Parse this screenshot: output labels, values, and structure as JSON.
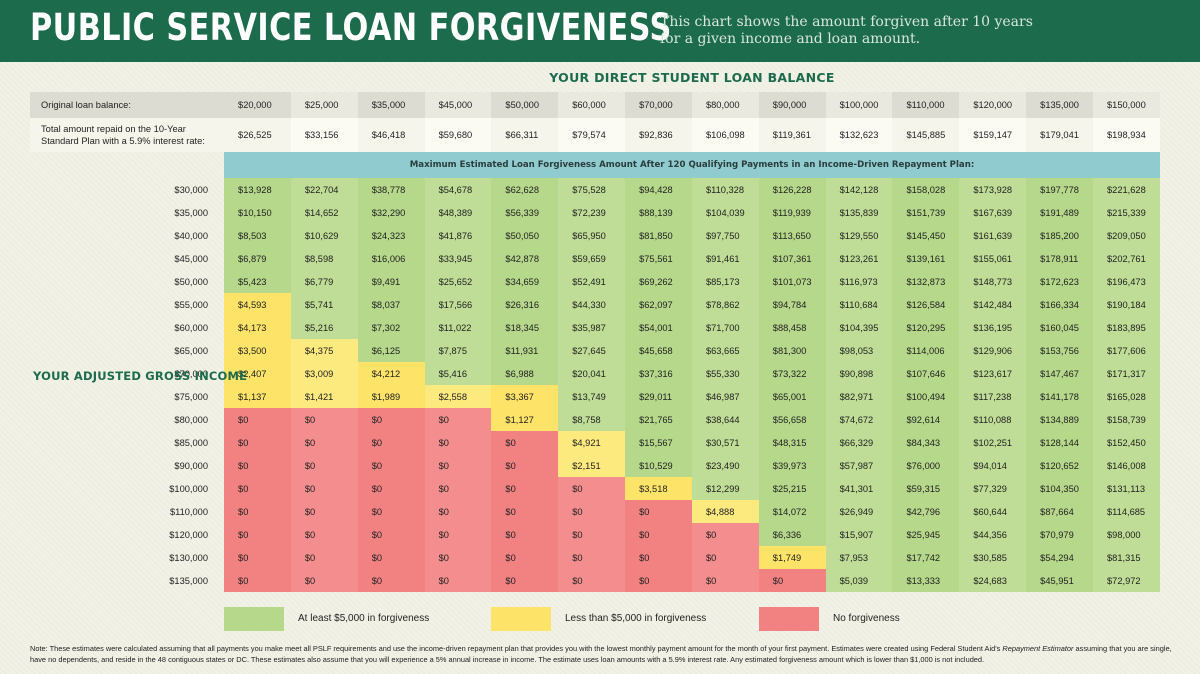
{
  "header": {
    "title": "PUBLIC SERVICE LOAN FORGIVENESS",
    "subtitle": "This chart shows the amount forgiven after 10 years for a given income and loan amount.",
    "color": "#1c6b4c"
  },
  "chart_data": {
    "type": "table",
    "title": "PUBLIC SERVICE LOAN FORGIVENESS",
    "column_heading": "YOUR DIRECT STUDENT LOAN BALANCE",
    "row_heading": "YOUR ADJUSTED GROSS INCOME",
    "balance_label": "Original loan balance:",
    "repaid_label": "Total amount repaid on the 10-Year Standard Plan with a 5.9% interest rate:",
    "banner": "Maximum Estimated Loan Forgiveness Amount After 120 Qualifying Payments in an Income-Driven Repayment Plan:",
    "balances": [
      "$20,000",
      "$25,000",
      "$35,000",
      "$45,000",
      "$50,000",
      "$60,000",
      "$70,000",
      "$80,000",
      "$90,000",
      "$100,000",
      "$110,000",
      "$120,000",
      "$135,000",
      "$150,000"
    ],
    "repaid": [
      "$26,525",
      "$33,156",
      "$46,418",
      "$59,680",
      "$66,311",
      "$79,574",
      "$92,836",
      "$106,098",
      "$119,361",
      "$132,623",
      "$145,885",
      "$159,147",
      "$179,041",
      "$198,934"
    ],
    "rows": [
      {
        "income": "$30,000",
        "values": [
          "$13,928",
          "$22,704",
          "$38,778",
          "$54,678",
          "$62,628",
          "$75,528",
          "$94,428",
          "$110,328",
          "$126,228",
          "$142,128",
          "$158,028",
          "$173,928",
          "$197,778",
          "$221,628"
        ]
      },
      {
        "income": "$35,000",
        "values": [
          "$10,150",
          "$14,652",
          "$32,290",
          "$48,389",
          "$56,339",
          "$72,239",
          "$88,139",
          "$104,039",
          "$119,939",
          "$135,839",
          "$151,739",
          "$167,639",
          "$191,489",
          "$215,339"
        ]
      },
      {
        "income": "$40,000",
        "values": [
          "$8,503",
          "$10,629",
          "$24,323",
          "$41,876",
          "$50,050",
          "$65,950",
          "$81,850",
          "$97,750",
          "$113,650",
          "$129,550",
          "$145,450",
          "$161,639",
          "$185,200",
          "$209,050"
        ]
      },
      {
        "income": "$45,000",
        "values": [
          "$6,879",
          "$8,598",
          "$16,006",
          "$33,945",
          "$42,878",
          "$59,659",
          "$75,561",
          "$91,461",
          "$107,361",
          "$123,261",
          "$139,161",
          "$155,061",
          "$178,911",
          "$202,761"
        ]
      },
      {
        "income": "$50,000",
        "values": [
          "$5,423",
          "$6,779",
          "$9,491",
          "$25,652",
          "$34,659",
          "$52,491",
          "$69,262",
          "$85,173",
          "$101,073",
          "$116,973",
          "$132,873",
          "$148,773",
          "$172,623",
          "$196,473"
        ]
      },
      {
        "income": "$55,000",
        "values": [
          "$4,593",
          "$5,741",
          "$8,037",
          "$17,566",
          "$26,316",
          "$44,330",
          "$62,097",
          "$78,862",
          "$94,784",
          "$110,684",
          "$126,584",
          "$142,484",
          "$166,334",
          "$190,184"
        ]
      },
      {
        "income": "$60,000",
        "values": [
          "$4,173",
          "$5,216",
          "$7,302",
          "$11,022",
          "$18,345",
          "$35,987",
          "$54,001",
          "$71,700",
          "$88,458",
          "$104,395",
          "$120,295",
          "$136,195",
          "$160,045",
          "$183,895"
        ]
      },
      {
        "income": "$65,000",
        "values": [
          "$3,500",
          "$4,375",
          "$6,125",
          "$7,875",
          "$11,931",
          "$27,645",
          "$45,658",
          "$63,665",
          "$81,300",
          "$98,053",
          "$114,006",
          "$129,906",
          "$153,756",
          "$177,606"
        ]
      },
      {
        "income": "$70,000",
        "values": [
          "$2,407",
          "$3,009",
          "$4,212",
          "$5,416",
          "$6,988",
          "$20,041",
          "$37,316",
          "$55,330",
          "$73,322",
          "$90,898",
          "$107,646",
          "$123,617",
          "$147,467",
          "$171,317"
        ]
      },
      {
        "income": "$75,000",
        "values": [
          "$1,137",
          "$1,421",
          "$1,989",
          "$2,558",
          "$3,367",
          "$13,749",
          "$29,011",
          "$46,987",
          "$65,001",
          "$82,971",
          "$100,494",
          "$117,238",
          "$141,178",
          "$165,028"
        ]
      },
      {
        "income": "$80,000",
        "values": [
          "$0",
          "$0",
          "$0",
          "$0",
          "$1,127",
          "$8,758",
          "$21,765",
          "$38,644",
          "$56,658",
          "$74,672",
          "$92,614",
          "$110,088",
          "$134,889",
          "$158,739"
        ]
      },
      {
        "income": "$85,000",
        "values": [
          "$0",
          "$0",
          "$0",
          "$0",
          "$0",
          "$4,921",
          "$15,567",
          "$30,571",
          "$48,315",
          "$66,329",
          "$84,343",
          "$102,251",
          "$128,144",
          "$152,450"
        ]
      },
      {
        "income": "$90,000",
        "values": [
          "$0",
          "$0",
          "$0",
          "$0",
          "$0",
          "$2,151",
          "$10,529",
          "$23,490",
          "$39,973",
          "$57,987",
          "$76,000",
          "$94,014",
          "$120,652",
          "$146,008"
        ]
      },
      {
        "income": "$100,000",
        "values": [
          "$0",
          "$0",
          "$0",
          "$0",
          "$0",
          "$0",
          "$3,518",
          "$12,299",
          "$25,215",
          "$41,301",
          "$59,315",
          "$77,329",
          "$104,350",
          "$131,113"
        ]
      },
      {
        "income": "$110,000",
        "values": [
          "$0",
          "$0",
          "$0",
          "$0",
          "$0",
          "$0",
          "$0",
          "$4,888",
          "$14,072",
          "$26,949",
          "$42,796",
          "$60,644",
          "$87,664",
          "$114,685"
        ]
      },
      {
        "income": "$120,000",
        "values": [
          "$0",
          "$0",
          "$0",
          "$0",
          "$0",
          "$0",
          "$0",
          "$0",
          "$6,336",
          "$15,907",
          "$25,945",
          "$44,356",
          "$70,979",
          "$98,000"
        ]
      },
      {
        "income": "$130,000",
        "values": [
          "$0",
          "$0",
          "$0",
          "$0",
          "$0",
          "$0",
          "$0",
          "$0",
          "$1,749",
          "$7,953",
          "$17,742",
          "$30,585",
          "$54,294",
          "$81,315"
        ]
      },
      {
        "income": "$135,000",
        "values": [
          "$0",
          "$0",
          "$0",
          "$0",
          "$0",
          "$0",
          "$0",
          "$0",
          "$0",
          "$5,039",
          "$13,333",
          "$24,683",
          "$45,951",
          "$72,972"
        ]
      }
    ],
    "legend": [
      {
        "label": "At least $5,000 in forgiveness",
        "color": "#b5d88b"
      },
      {
        "label": "Less than $5,000 in forgiveness",
        "color": "#fde468"
      },
      {
        "label": "No forgiveness",
        "color": "#f28182"
      }
    ]
  },
  "note": {
    "part1": "Note: These estimates were calculated assuming that all payments you make meet all PSLF requirements and use the income-driven repayment plan that provides you with the lowest monthly payment amount for the month of your first payment. Estimates were created using Federal Student Aid's ",
    "italic": "Repayment Estimator",
    "part2": " assuming that you are single, have no dependents, and reside in the 48 contiguous states or DC. These estimates also assume that you will experience a 5% annual increase in income. The estimate uses loan amounts with a 5.9% interest rate. Any estimated forgiveness amount which is lower than $1,000 is not included."
  }
}
